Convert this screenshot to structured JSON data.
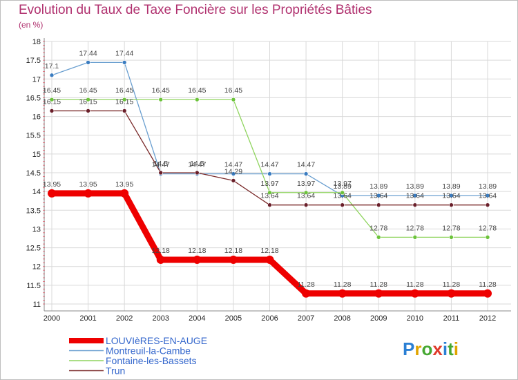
{
  "title": "Evolution du Taux de Taxe Foncière sur les Propriétés Bâties",
  "subtitle": "(en %)",
  "logo": {
    "text": "Proxiti",
    "letters": [
      "P",
      "r",
      "o",
      "x",
      "i",
      "t",
      "i"
    ],
    "colors": [
      "#2a7fd4",
      "#e0a400",
      "#46a832",
      "#e03a2a",
      "#2a7fd4",
      "#46a832",
      "#e0a400"
    ]
  },
  "chart_data": {
    "type": "line",
    "title": "Evolution du Taux de Taxe Foncière sur les Propriétés Bâties",
    "ylabel": "(en %)",
    "xlabel": "",
    "ylim": [
      11,
      18
    ],
    "yticks": [
      "11",
      "11.5",
      "12",
      "12.5",
      "13",
      "13.5",
      "14",
      "14.5",
      "15",
      "15.5",
      "16",
      "16.5",
      "17",
      "17.5",
      "18"
    ],
    "categories": [
      "2000",
      "2001",
      "2002",
      "2003",
      "2004",
      "2005",
      "2006",
      "2007",
      "2008",
      "2009",
      "2010",
      "2011",
      "2012"
    ],
    "series": [
      {
        "name": "Montreuil-la-Cambe",
        "color": "#6a9fd0",
        "marker": "#3a7cc0",
        "width": 1.3,
        "values": [
          17.1,
          17.44,
          17.44,
          14.47,
          14.47,
          14.47,
          14.47,
          14.47,
          13.89,
          13.89,
          13.89,
          13.89,
          13.89
        ],
        "labels": [
          "17.1",
          "17.44",
          "17.44",
          "14.47",
          "14.47",
          "14.47",
          "14.47",
          "14.47",
          "13.89",
          "13.89",
          "13.89",
          "13.89",
          "13.89"
        ]
      },
      {
        "name": "Fontaine-les-Bassets",
        "color": "#8fd45e",
        "marker": "#6cc33b",
        "width": 1.3,
        "values": [
          16.45,
          16.45,
          16.45,
          16.45,
          16.45,
          16.45,
          13.97,
          13.97,
          13.97,
          12.78,
          12.78,
          12.78,
          12.78
        ],
        "labels": [
          "16.45",
          "16.45",
          "16.45",
          "16.45",
          "16.45",
          "16.45",
          "13.97",
          "13.97",
          "13.97",
          "12.78",
          "12.78",
          "12.78",
          "12.78"
        ]
      },
      {
        "name": "Trun",
        "color": "#7a2a2a",
        "marker": "#6a1f2a",
        "width": 1.3,
        "values": [
          16.15,
          16.15,
          16.15,
          14.5,
          14.5,
          14.29,
          13.64,
          13.64,
          13.64,
          13.64,
          13.64,
          13.64,
          13.64
        ],
        "labels": [
          "16.15",
          "16.15",
          "16.15",
          "14.5",
          "14.5",
          "14.29",
          "13.64",
          "13.64",
          "13.64",
          "13.64",
          "13.64",
          "13.64",
          "13.64"
        ]
      },
      {
        "name": "LOUVIèRES-EN-AUGE",
        "color": "#ee0000",
        "marker": "#ee0000",
        "width": 9,
        "values": [
          13.95,
          13.95,
          13.95,
          12.18,
          12.18,
          12.18,
          12.18,
          11.28,
          11.28,
          11.28,
          11.28,
          11.28,
          11.28
        ],
        "labels": [
          "13.95",
          "13.95",
          "13.95",
          "12.18",
          "12.18",
          "12.18",
          "12.18",
          "11.28",
          "11.28",
          "11.28",
          "11.28",
          "11.28",
          "11.28"
        ]
      }
    ],
    "legend": [
      "LOUVIèRES-EN-AUGE",
      "Montreuil-la-Cambe",
      "Fontaine-les-Bassets",
      "Trun"
    ],
    "legend_position": "bottom-left"
  }
}
